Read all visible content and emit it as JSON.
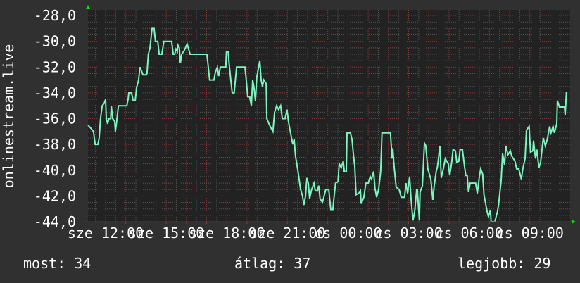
{
  "chart_data": {
    "type": "line",
    "ylabel": "onlinestream.live",
    "ylim": [
      -44,
      -27.56
    ],
    "xlim": [
      "sze 11:08",
      "cs 10:59"
    ],
    "grid": true,
    "y_ticks": [
      "-28,0",
      "-30,0",
      "-32,0",
      "-34,0",
      "-36,0",
      "-38,0",
      "-40,0",
      "-42,0",
      "-44,0"
    ],
    "y_tick_values": [
      -28,
      -30,
      -32,
      -34,
      -36,
      -38,
      -40,
      -42,
      -44
    ],
    "x_ticks": [
      "sze 12:00",
      "sze 15:00",
      "sze 18:00",
      "sze 21:00",
      "cs 00:00",
      "cs 03:00",
      "cs 06:00",
      "cs 09:00"
    ],
    "x_tick_times": [
      "12:00",
      "15:00",
      "18:00",
      "21:00",
      "00:00",
      "03:00",
      "06:00",
      "09:00"
    ],
    "colors": {
      "background": "#303030",
      "plot_background": "#222222",
      "line": "#7ef5c0",
      "major_grid": "#8a3a3a",
      "minor_grid": "#555555",
      "arrow": "#00dd00"
    },
    "series": [
      {
        "x": [
          "11:08",
          "11:18",
          "11:24",
          "11:29",
          "11:37",
          "11:41",
          "11:45",
          "11:50",
          "11:56",
          "12:00",
          "12:02",
          "12:06",
          "12:10",
          "12:15",
          "12:17",
          "12:21",
          "12:27",
          "12:29",
          "12:33",
          "12:38",
          "13:03",
          "13:07",
          "13:09",
          "13:17",
          "13:22",
          "13:28",
          "13:32",
          "13:38",
          "13:42",
          "13:51",
          "14:01",
          "14:03",
          "14:07",
          "14:12",
          "14:18",
          "14:24",
          "14:28",
          "14:35",
          "14:39",
          "14:47",
          "14:53",
          "15:16",
          "15:21",
          "15:25",
          "15:29",
          "15:33",
          "15:35",
          "15:39",
          "15:42",
          "15:46",
          "15:54",
          "16:02",
          "16:11",
          "17:01",
          "17:05",
          "17:09",
          "17:22",
          "17:26",
          "17:32",
          "17:36",
          "17:41",
          "17:57",
          "17:59",
          "18:04",
          "18:08",
          "18:12",
          "18:16",
          "18:22",
          "18:29",
          "18:54",
          "18:58",
          "19:02",
          "19:08",
          "19:13",
          "19:17",
          "19:21",
          "19:25",
          "19:29",
          "19:38",
          "19:42",
          "19:46",
          "19:50",
          "19:57",
          "19:59",
          "20:07",
          "20:13",
          "20:17",
          "20:22",
          "20:28",
          "20:34",
          "20:40",
          "20:45",
          "20:53",
          "20:59",
          "21:03",
          "21:10",
          "21:16",
          "21:20",
          "21:24",
          "21:31",
          "21:39",
          "21:45",
          "21:49",
          "21:54",
          "21:58",
          "22:02",
          "22:06",
          "22:12",
          "22:19",
          "22:23",
          "22:29",
          "22:33",
          "22:37",
          "22:44",
          "22:48",
          "22:54",
          "23:03",
          "23:09",
          "23:15",
          "23:17",
          "23:23",
          "23:30",
          "23:34",
          "23:40",
          "23:46",
          "23:49",
          "23:55",
          "23:57",
          "00:07",
          "00:12",
          "00:16",
          "00:20",
          "00:24",
          "00:32",
          "00:37",
          "00:39",
          "00:47",
          "00:53",
          "01:00",
          "01:06",
          "01:10",
          "01:16",
          "01:20",
          "01:25",
          "01:31",
          "01:37",
          "01:41",
          "02:06",
          "02:11",
          "02:13",
          "02:17",
          "02:23",
          "02:32",
          "02:38",
          "02:48",
          "02:52",
          "02:57",
          "03:03",
          "03:07",
          "03:13",
          "03:18",
          "03:24",
          "03:26",
          "03:32",
          "03:34",
          "03:41",
          "03:47",
          "03:51",
          "03:57",
          "04:06",
          "04:12",
          "04:16",
          "04:22",
          "04:26",
          "04:33",
          "04:37",
          "04:43",
          "04:49",
          "04:58",
          "05:02",
          "05:08",
          "05:12",
          "05:19",
          "05:23",
          "05:29",
          "05:33",
          "05:40",
          "05:46",
          "05:50",
          "05:54",
          "05:58",
          "06:03",
          "06:19",
          "06:24",
          "06:30",
          "06:34",
          "06:40",
          "06:44",
          "06:53",
          "06:57",
          "07:03",
          "07:05",
          "07:16",
          "07:24",
          "07:28",
          "07:35",
          "07:39",
          "07:45",
          "07:49",
          "07:55",
          "08:02",
          "08:06",
          "08:16",
          "08:21",
          "08:27",
          "08:29",
          "08:35",
          "08:39",
          "08:46",
          "08:50",
          "08:58",
          "09:02",
          "09:09",
          "09:11",
          "09:17",
          "09:21",
          "09:27",
          "09:32",
          "09:40",
          "09:46",
          "09:52",
          "09:59",
          "10:03",
          "10:09",
          "10:13",
          "10:20",
          "10:22",
          "10:28",
          "10:43",
          "10:45",
          "10:49"
        ],
        "y": [
          -36.5,
          -36.8,
          -37.0,
          -38.0,
          -38.0,
          -37.5,
          -36.0,
          -35.0,
          -34.8,
          -34.5,
          -36.0,
          -36.4,
          -36.0,
          -36.0,
          -35.0,
          -36.0,
          -36.2,
          -37.0,
          -36.2,
          -35.0,
          -35.0,
          -34.5,
          -34.0,
          -34.0,
          -34.6,
          -34.6,
          -33.6,
          -33.0,
          -32.0,
          -32.6,
          -32.6,
          -32.5,
          -31.0,
          -30.5,
          -29.0,
          -29.0,
          -30.0,
          -30.0,
          -31.0,
          -31.0,
          -30.0,
          -30.0,
          -31.0,
          -31.0,
          -30.6,
          -30.8,
          -30.3,
          -30.5,
          -31.7,
          -31.0,
          -30.7,
          -30.2,
          -31.0,
          -31.0,
          -32.0,
          -33.0,
          -33.0,
          -32.4,
          -32.0,
          -32.7,
          -32.0,
          -32.0,
          -30.8,
          -30.8,
          -32.0,
          -33.0,
          -34.0,
          -34.0,
          -32.0,
          -32.0,
          -33.0,
          -34.3,
          -34.3,
          -35.0,
          -33.0,
          -33.6,
          -34.6,
          -32.8,
          -31.5,
          -33.0,
          -33.5,
          -33.0,
          -33.3,
          -36.0,
          -36.5,
          -36.8,
          -37.0,
          -35.5,
          -35.0,
          -35.3,
          -35.0,
          -36.0,
          -36.0,
          -35.3,
          -36.2,
          -37.2,
          -38.0,
          -37.6,
          -38.9,
          -40.0,
          -41.5,
          -42.0,
          -42.7,
          -42.0,
          -40.6,
          -41.0,
          -42.2,
          -41.5,
          -41.0,
          -41.6,
          -41.6,
          -41.2,
          -42.2,
          -42.5,
          -42.1,
          -41.5,
          -41.5,
          -43.1,
          -43.1,
          -42.5,
          -41.0,
          -40.9,
          -39.5,
          -39.8,
          -39.3,
          -40.1,
          -40.1,
          -37.1,
          -37.1,
          -37.6,
          -38.8,
          -39.7,
          -41.9,
          -41.8,
          -41.6,
          -42.6,
          -42.1,
          -41.0,
          -41.0,
          -40.5,
          -40.7,
          -40.1,
          -41.4,
          -42.1,
          -41.5,
          -40.1,
          -37.1,
          -37.1,
          -39.1,
          -38.3,
          -39.7,
          -41.3,
          -41.5,
          -42.1,
          -42.1,
          -41.0,
          -41.8,
          -40.5,
          -42.1,
          -43.9,
          -43.2,
          -41.5,
          -41.5,
          -43.9,
          -41.7,
          -41.2,
          -37.9,
          -38.1,
          -39.9,
          -40.7,
          -42.3,
          -41.2,
          -40.1,
          -39.7,
          -38.1,
          -40.6,
          -39.9,
          -39.1,
          -39.5,
          -40.4,
          -39.4,
          -38.4,
          -38.5,
          -39.4,
          -39.3,
          -38.4,
          -38.4,
          -39.7,
          -40.4,
          -40.4,
          -41.7,
          -41.0,
          -41.0,
          -41.8,
          -40.5,
          -39.9,
          -40.3,
          -41.9,
          -43.2,
          -43.6,
          -43.1,
          -44.0,
          -44.0,
          -43.2,
          -42.5,
          -40.8,
          -38.7,
          -39.6,
          -38.1,
          -38.8,
          -38.5,
          -38.9,
          -39.3,
          -39.9,
          -39.9,
          -40.1,
          -40.7,
          -39.9,
          -39.1,
          -36.9,
          -36.6,
          -38.6,
          -38.5,
          -37.7,
          -39.1,
          -38.4,
          -39.8,
          -39.4,
          -37.5,
          -38.1,
          -37.6,
          -36.6,
          -37.1,
          -36.6,
          -37.1,
          -36.4,
          -34.6,
          -35.1,
          -35.1,
          -35.7,
          -33.9
        ]
      }
    ]
  },
  "legend": {
    "current": "most: 34",
    "average": "átlag: 37",
    "best": "legjobb: 29"
  }
}
